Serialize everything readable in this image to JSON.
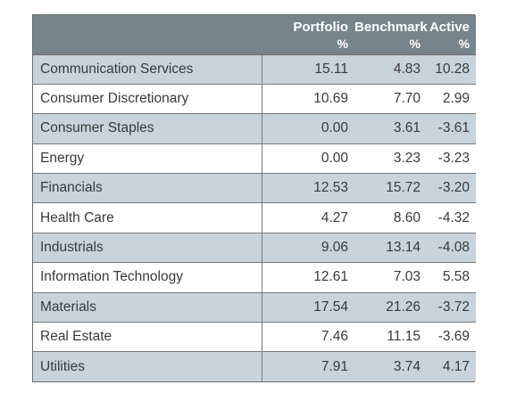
{
  "table": {
    "headers": [
      {
        "label": "",
        "unit": ""
      },
      {
        "label": "Portfolio",
        "unit": "%"
      },
      {
        "label": "Benchmark",
        "unit": "%"
      },
      {
        "label": "Active",
        "unit": "%"
      }
    ],
    "rows": [
      {
        "sector": "Communication Services",
        "portfolio": "15.11",
        "benchmark": "4.83",
        "active": "10.28"
      },
      {
        "sector": "Consumer Discretionary",
        "portfolio": "10.69",
        "benchmark": "7.70",
        "active": "2.99"
      },
      {
        "sector": "Consumer Staples",
        "portfolio": "0.00",
        "benchmark": "3.61",
        "active": "-3.61"
      },
      {
        "sector": "Energy",
        "portfolio": "0.00",
        "benchmark": "3.23",
        "active": "-3.23"
      },
      {
        "sector": "Financials",
        "portfolio": "12.53",
        "benchmark": "15.72",
        "active": "-3.20"
      },
      {
        "sector": "Health Care",
        "portfolio": "4.27",
        "benchmark": "8.60",
        "active": "-4.32"
      },
      {
        "sector": "Industrials",
        "portfolio": "9.06",
        "benchmark": "13.14",
        "active": "-4.08"
      },
      {
        "sector": "Information Technology",
        "portfolio": "12.61",
        "benchmark": "7.03",
        "active": "5.58"
      },
      {
        "sector": "Materials",
        "portfolio": "17.54",
        "benchmark": "21.26",
        "active": "-3.72"
      },
      {
        "sector": "Real Estate",
        "portfolio": "7.46",
        "benchmark": "11.15",
        "active": "-3.69"
      },
      {
        "sector": "Utilities",
        "portfolio": "7.91",
        "benchmark": "3.74",
        "active": "4.17"
      }
    ]
  },
  "colors": {
    "header_bg": "#76858c",
    "shaded_row": "#c9d3d9",
    "plain_row": "#ffffff",
    "text": "#3a3a3a"
  }
}
